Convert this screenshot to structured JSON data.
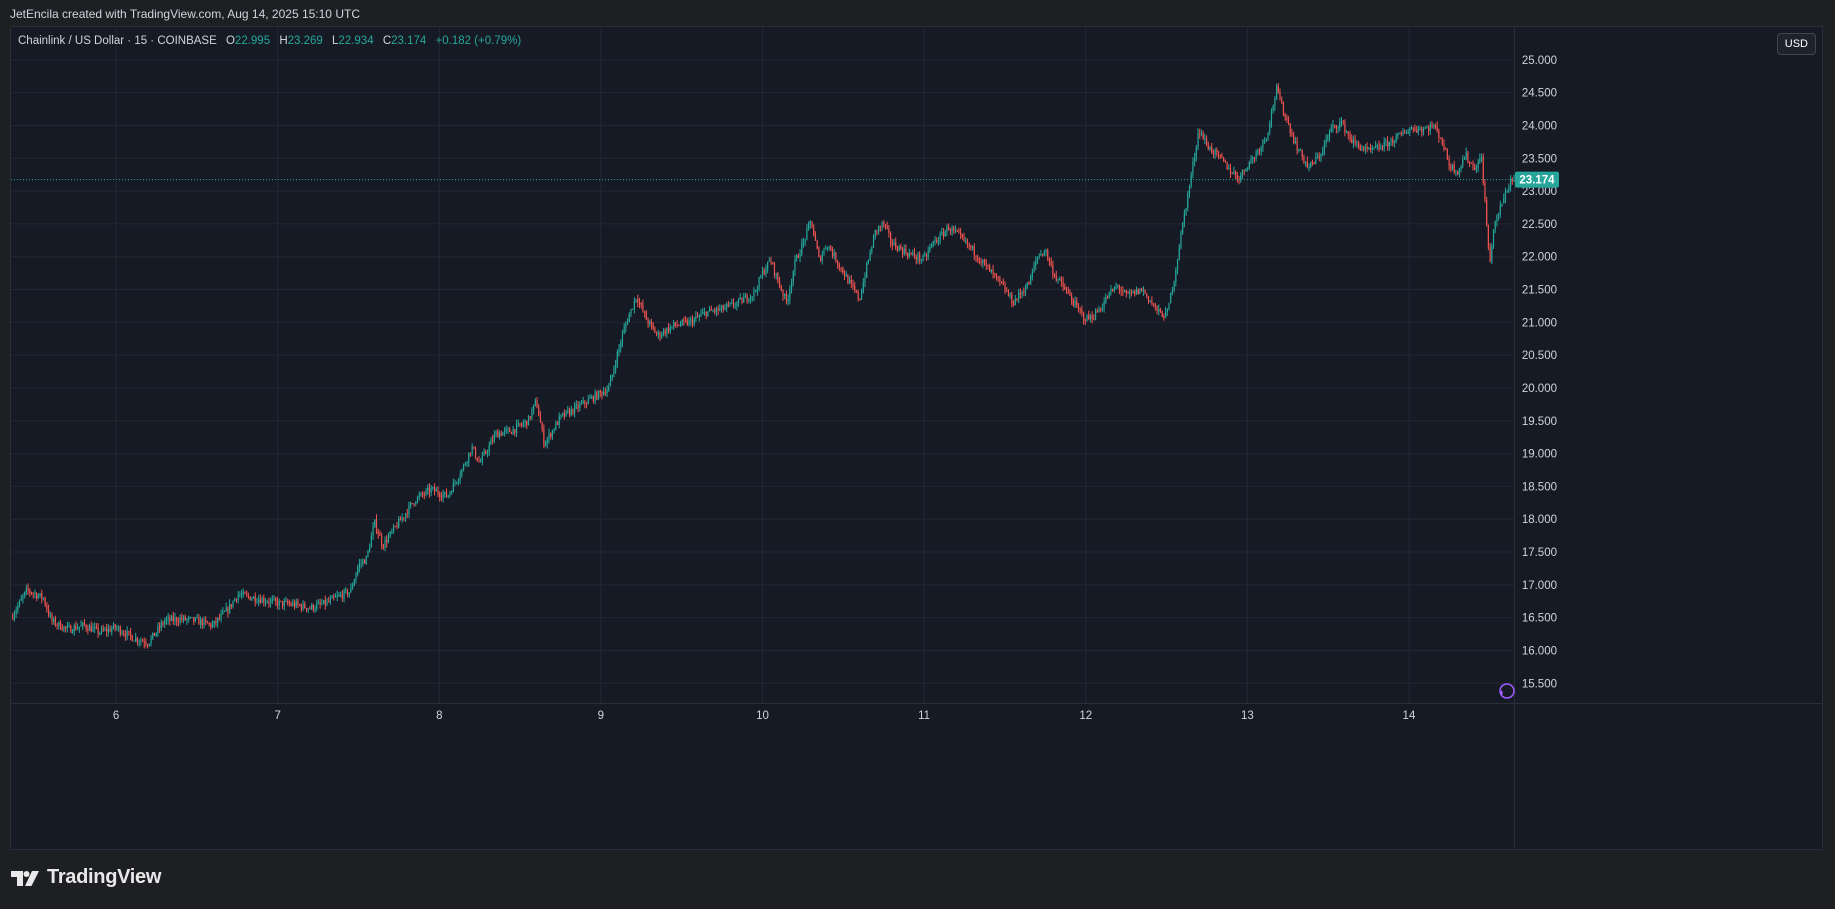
{
  "caption": "JetEncila created with TradingView.com, Aug 14, 2025 15:10 UTC",
  "legend": {
    "symbol": "Chainlink / US Dollar · 15 · COINBASE",
    "open_label": "O",
    "open_value": "22.995",
    "high_label": "H",
    "high_value": "23.269",
    "low_label": "L",
    "low_value": "22.934",
    "close_label": "C",
    "close_value": "23.174",
    "change": "+0.182 (+0.79%)"
  },
  "currency_button": "USD",
  "last_price_label": "23.174",
  "logo_text": "TradingView",
  "icons": {
    "logo": "tradingview-logo-icon",
    "ai_badge": "sparkle-icon"
  },
  "colors": {
    "background": "#161a25",
    "grid": "#232733",
    "up": "#26a69a",
    "down": "#ef5350",
    "axis_text": "#d1d4dc",
    "last_price": "#26a69a",
    "outer": "#1e1f23"
  },
  "chart_data": {
    "type": "candlestick",
    "title": "Chainlink / US Dollar · 15 · COINBASE",
    "timeframe": "15",
    "exchange": "COINBASE",
    "ylim": [
      15.2,
      25.5
    ],
    "xlim": [
      5.35,
      14.65
    ],
    "y_ticks": [
      "15.500",
      "16.000",
      "16.500",
      "17.000",
      "17.500",
      "18.000",
      "18.500",
      "19.000",
      "19.500",
      "20.000",
      "20.500",
      "21.000",
      "21.500",
      "22.000",
      "22.500",
      "23.000",
      "23.500",
      "24.000",
      "24.500",
      "25.000"
    ],
    "x_ticks": [
      "6",
      "7",
      "8",
      "9",
      "10",
      "11",
      "12",
      "13",
      "14"
    ],
    "grid": true,
    "last_price": 23.174,
    "close_path": [
      [
        5.35,
        16.5
      ],
      [
        5.45,
        16.92
      ],
      [
        5.55,
        16.8
      ],
      [
        5.6,
        16.45
      ],
      [
        5.7,
        16.32
      ],
      [
        5.8,
        16.38
      ],
      [
        5.9,
        16.28
      ],
      [
        6.0,
        16.35
      ],
      [
        6.1,
        16.2
      ],
      [
        6.2,
        16.12
      ],
      [
        6.3,
        16.45
      ],
      [
        6.4,
        16.48
      ],
      [
        6.5,
        16.45
      ],
      [
        6.6,
        16.38
      ],
      [
        6.7,
        16.65
      ],
      [
        6.75,
        16.85
      ],
      [
        6.9,
        16.78
      ],
      [
        7.0,
        16.72
      ],
      [
        7.1,
        16.7
      ],
      [
        7.2,
        16.65
      ],
      [
        7.3,
        16.72
      ],
      [
        7.4,
        16.85
      ],
      [
        7.45,
        16.9
      ],
      [
        7.5,
        17.3
      ],
      [
        7.55,
        17.4
      ],
      [
        7.6,
        17.95
      ],
      [
        7.65,
        17.6
      ],
      [
        7.75,
        17.95
      ],
      [
        7.85,
        18.3
      ],
      [
        7.95,
        18.45
      ],
      [
        8.05,
        18.35
      ],
      [
        8.15,
        18.8
      ],
      [
        8.2,
        19.1
      ],
      [
        8.25,
        18.85
      ],
      [
        8.35,
        19.3
      ],
      [
        8.45,
        19.35
      ],
      [
        8.55,
        19.5
      ],
      [
        8.6,
        19.8
      ],
      [
        8.65,
        19.15
      ],
      [
        8.75,
        19.55
      ],
      [
        8.85,
        19.7
      ],
      [
        8.95,
        19.85
      ],
      [
        9.05,
        20.0
      ],
      [
        9.1,
        20.5
      ],
      [
        9.15,
        20.95
      ],
      [
        9.22,
        21.4
      ],
      [
        9.28,
        21.05
      ],
      [
        9.35,
        20.8
      ],
      [
        9.45,
        20.95
      ],
      [
        9.55,
        21.0
      ],
      [
        9.65,
        21.15
      ],
      [
        9.75,
        21.2
      ],
      [
        9.85,
        21.3
      ],
      [
        9.95,
        21.45
      ],
      [
        10.0,
        21.75
      ],
      [
        10.05,
        21.95
      ],
      [
        10.1,
        21.6
      ],
      [
        10.15,
        21.3
      ],
      [
        10.2,
        21.9
      ],
      [
        10.25,
        22.2
      ],
      [
        10.3,
        22.55
      ],
      [
        10.35,
        21.95
      ],
      [
        10.4,
        22.2
      ],
      [
        10.48,
        21.85
      ],
      [
        10.55,
        21.55
      ],
      [
        10.6,
        21.35
      ],
      [
        10.65,
        21.9
      ],
      [
        10.7,
        22.4
      ],
      [
        10.75,
        22.5
      ],
      [
        10.8,
        22.2
      ],
      [
        10.9,
        22.05
      ],
      [
        11.0,
        21.95
      ],
      [
        11.05,
        22.2
      ],
      [
        11.1,
        22.3
      ],
      [
        11.15,
        22.45
      ],
      [
        11.2,
        22.35
      ],
      [
        11.3,
        22.1
      ],
      [
        11.4,
        21.8
      ],
      [
        11.5,
        21.5
      ],
      [
        11.55,
        21.3
      ],
      [
        11.65,
        21.6
      ],
      [
        11.7,
        22.0
      ],
      [
        11.75,
        22.1
      ],
      [
        11.8,
        21.75
      ],
      [
        11.9,
        21.4
      ],
      [
        11.95,
        21.2
      ],
      [
        12.0,
        21.05
      ],
      [
        12.05,
        21.1
      ],
      [
        12.1,
        21.25
      ],
      [
        12.15,
        21.45
      ],
      [
        12.2,
        21.55
      ],
      [
        12.25,
        21.4
      ],
      [
        12.35,
        21.5
      ],
      [
        12.45,
        21.15
      ],
      [
        12.5,
        21.1
      ],
      [
        12.55,
        21.7
      ],
      [
        12.6,
        22.5
      ],
      [
        12.65,
        23.2
      ],
      [
        12.7,
        23.95
      ],
      [
        12.75,
        23.7
      ],
      [
        12.85,
        23.45
      ],
      [
        12.9,
        23.3
      ],
      [
        12.95,
        23.2
      ],
      [
        13.0,
        23.4
      ],
      [
        13.05,
        23.55
      ],
      [
        13.12,
        23.85
      ],
      [
        13.18,
        24.55
      ],
      [
        13.22,
        24.25
      ],
      [
        13.3,
        23.7
      ],
      [
        13.38,
        23.35
      ],
      [
        13.45,
        23.55
      ],
      [
        13.52,
        23.95
      ],
      [
        13.58,
        24.05
      ],
      [
        13.65,
        23.75
      ],
      [
        13.75,
        23.6
      ],
      [
        13.85,
        23.7
      ],
      [
        13.95,
        23.85
      ],
      [
        14.0,
        23.95
      ],
      [
        14.1,
        23.95
      ],
      [
        14.15,
        24.0
      ],
      [
        14.2,
        23.8
      ],
      [
        14.25,
        23.4
      ],
      [
        14.3,
        23.3
      ],
      [
        14.35,
        23.55
      ],
      [
        14.4,
        23.35
      ],
      [
        14.45,
        23.5
      ],
      [
        14.5,
        21.85
      ],
      [
        14.52,
        22.4
      ],
      [
        14.58,
        22.85
      ],
      [
        14.63,
        23.174
      ]
    ],
    "annotations": []
  }
}
